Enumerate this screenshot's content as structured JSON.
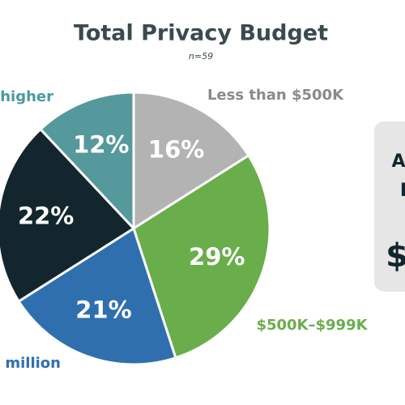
{
  "chart_data": {
    "type": "pie",
    "title": "Total Privacy Budget",
    "subtitle": "n=59",
    "categories": [
      "Less than $500K",
      "$500K–$999K",
      "million",
      null,
      "higher"
    ],
    "values": [
      16,
      29,
      21,
      22,
      12
    ],
    "value_labels": [
      "16%",
      "29%",
      "21%",
      "22%",
      "12%"
    ],
    "colors": [
      "#b3b3b3",
      "#6aad4b",
      "#2f6fad",
      "#13262d",
      "#55999c"
    ],
    "label_colors": [
      "#8a8a8a",
      "#6aad4b",
      "#2f6fad",
      "#13262d",
      "#4a9a9f"
    ],
    "callout": [
      "A",
      "I",
      "$"
    ]
  }
}
